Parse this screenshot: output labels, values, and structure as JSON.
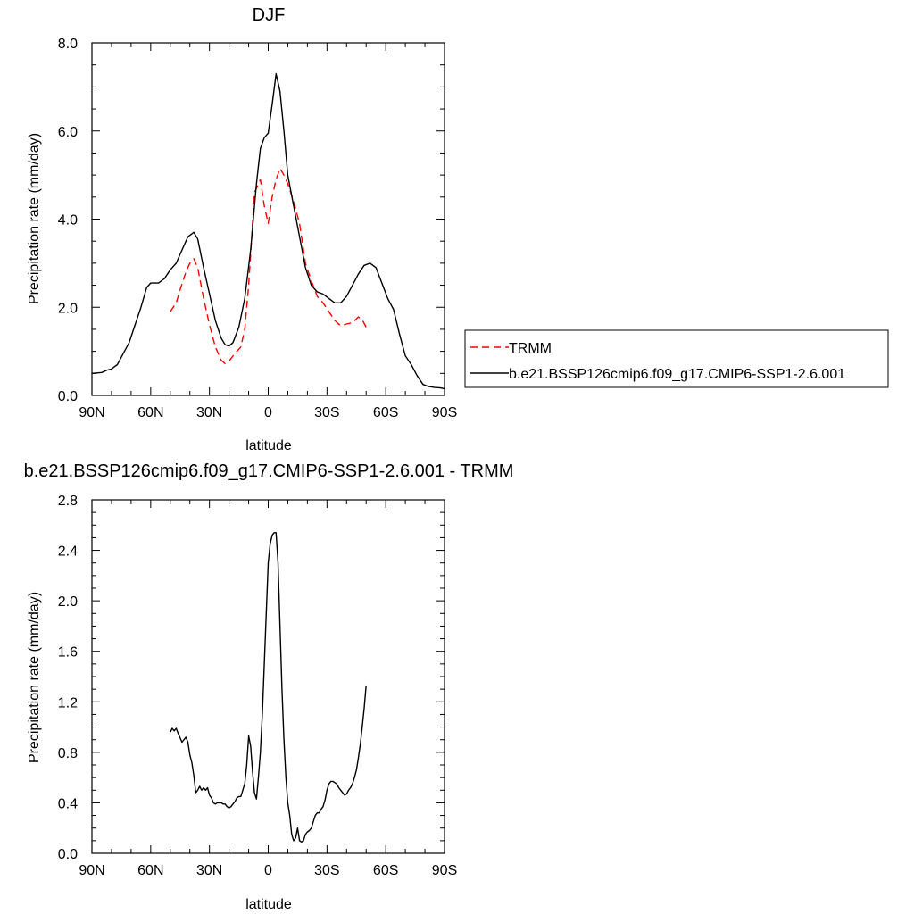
{
  "chart_data": [
    {
      "type": "line",
      "title": "DJF",
      "xlabel": "latitude",
      "ylabel": "Precipitation rate (mm/day)",
      "xlim": [
        -90,
        90
      ],
      "ylim": [
        0,
        8
      ],
      "x_ticks": [
        -90,
        -60,
        -30,
        0,
        30,
        60,
        90
      ],
      "x_tick_labels": [
        "90N",
        "60N",
        "30N",
        "0",
        "30S",
        "60S",
        "90S"
      ],
      "y_ticks": [
        0,
        2,
        4,
        6,
        8
      ],
      "y_tick_labels": [
        "0.0",
        "2.0",
        "4.0",
        "6.0",
        "8.0"
      ],
      "legend_position": "right",
      "series": [
        {
          "name": "TRMM",
          "color": "#ff0000",
          "dash": "dashed",
          "x": [
            -50,
            -47,
            -45,
            -42,
            -40,
            -38,
            -36,
            -33,
            -30,
            -27,
            -24,
            -22,
            -20,
            -17,
            -14,
            -12,
            -10,
            -7,
            -4,
            -2,
            0,
            2,
            4,
            6,
            8,
            10,
            13,
            16,
            19,
            22,
            25,
            28,
            31,
            34,
            37,
            40,
            43,
            46,
            48,
            50
          ],
          "y": [
            1.9,
            2.1,
            2.4,
            2.8,
            3.0,
            3.1,
            2.9,
            2.2,
            1.6,
            1.1,
            0.8,
            0.72,
            0.78,
            0.95,
            1.1,
            1.5,
            2.5,
            4.6,
            4.9,
            4.3,
            3.9,
            4.5,
            4.9,
            5.15,
            5.0,
            4.8,
            4.4,
            3.9,
            3.0,
            2.6,
            2.25,
            2.1,
            1.9,
            1.7,
            1.58,
            1.62,
            1.65,
            1.78,
            1.72,
            1.55
          ]
        },
        {
          "name": "b.e21.BSSP126cmip6.f09_g17.CMIP6-SSP1-2.6.001",
          "color": "#000000",
          "dash": "solid",
          "x": [
            -90,
            -85,
            -82,
            -80,
            -77,
            -74,
            -71,
            -68,
            -65,
            -62,
            -60,
            -58,
            -56,
            -53,
            -50,
            -47,
            -44,
            -41,
            -38,
            -36,
            -33,
            -30,
            -27,
            -24,
            -22,
            -20,
            -18,
            -15,
            -12,
            -9,
            -6,
            -4,
            -2,
            0,
            2,
            4,
            6,
            8,
            10,
            13,
            16,
            19,
            22,
            25,
            28,
            31,
            34,
            37,
            40,
            43,
            46,
            49,
            52,
            55,
            58,
            61,
            64,
            67,
            70,
            73,
            76,
            79,
            82,
            85,
            88,
            90
          ],
          "y": [
            0.5,
            0.52,
            0.58,
            0.6,
            0.7,
            0.95,
            1.2,
            1.6,
            2.0,
            2.45,
            2.55,
            2.55,
            2.55,
            2.65,
            2.85,
            3.0,
            3.3,
            3.6,
            3.7,
            3.55,
            2.9,
            2.3,
            1.7,
            1.3,
            1.15,
            1.12,
            1.2,
            1.55,
            2.2,
            3.3,
            4.8,
            5.6,
            5.85,
            5.95,
            6.6,
            7.3,
            6.9,
            6.0,
            5.0,
            4.3,
            3.6,
            2.9,
            2.5,
            2.35,
            2.3,
            2.2,
            2.1,
            2.1,
            2.25,
            2.5,
            2.75,
            2.95,
            3.0,
            2.9,
            2.55,
            2.2,
            1.95,
            1.4,
            0.9,
            0.7,
            0.45,
            0.25,
            0.2,
            0.18,
            0.17,
            0.15
          ]
        }
      ]
    },
    {
      "type": "line",
      "title": "b.e21.BSSP126cmip6.f09_g17.CMIP6-SSP1-2.6.001 - TRMM",
      "xlabel": "latitude",
      "ylabel": "Precipitation rate (mm/day)",
      "xlim": [
        -90,
        90
      ],
      "ylim": [
        0,
        2.8
      ],
      "x_ticks": [
        -90,
        -60,
        -30,
        0,
        30,
        60,
        90
      ],
      "x_tick_labels": [
        "90N",
        "60N",
        "30N",
        "0",
        "30S",
        "60S",
        "90S"
      ],
      "y_ticks": [
        0,
        0.4,
        0.8,
        1.2,
        1.6,
        2.0,
        2.4,
        2.8
      ],
      "y_tick_labels": [
        "0.0",
        "0.4",
        "0.8",
        "1.2",
        "1.6",
        "2.0",
        "2.4",
        "2.8"
      ],
      "series": [
        {
          "color": "#000000",
          "x": [
            -50,
            -49,
            -48,
            -47,
            -46,
            -44,
            -43,
            -42,
            -41,
            -40,
            -39,
            -38,
            -37,
            -36,
            -35,
            -34,
            -33,
            -32,
            -31,
            -30,
            -29,
            -28,
            -27,
            -26,
            -25,
            -24,
            -23,
            -22,
            -21,
            -20,
            -19,
            -18,
            -17,
            -16,
            -15,
            -14,
            -13,
            -12,
            -11,
            -10,
            -9,
            -8,
            -7,
            -6,
            -5,
            -4,
            -3,
            -2,
            -1,
            0,
            1,
            2,
            3,
            4,
            5,
            6,
            7,
            8,
            9,
            10,
            11,
            12,
            13,
            14,
            15,
            16,
            17,
            18,
            19,
            20,
            21,
            22,
            23,
            24,
            25,
            26,
            27,
            28,
            29,
            30,
            31,
            32,
            33,
            34,
            35,
            36,
            37,
            38,
            39,
            40,
            41,
            42,
            43,
            44,
            45,
            46,
            47,
            48,
            49,
            50
          ],
          "y": [
            0.96,
            0.99,
            0.97,
            0.99,
            0.95,
            0.88,
            0.9,
            0.92,
            0.88,
            0.78,
            0.72,
            0.62,
            0.48,
            0.5,
            0.53,
            0.5,
            0.52,
            0.5,
            0.52,
            0.46,
            0.44,
            0.4,
            0.39,
            0.4,
            0.4,
            0.4,
            0.39,
            0.39,
            0.37,
            0.36,
            0.37,
            0.39,
            0.41,
            0.44,
            0.45,
            0.45,
            0.5,
            0.55,
            0.7,
            0.93,
            0.85,
            0.65,
            0.48,
            0.43,
            0.6,
            0.8,
            1.1,
            1.5,
            1.9,
            2.3,
            2.45,
            2.52,
            2.54,
            2.54,
            2.3,
            1.8,
            1.3,
            0.9,
            0.6,
            0.4,
            0.3,
            0.15,
            0.1,
            0.12,
            0.2,
            0.1,
            0.09,
            0.1,
            0.15,
            0.17,
            0.18,
            0.2,
            0.25,
            0.3,
            0.32,
            0.32,
            0.35,
            0.37,
            0.42,
            0.5,
            0.55,
            0.57,
            0.57,
            0.56,
            0.55,
            0.52,
            0.5,
            0.48,
            0.46,
            0.47,
            0.5,
            0.52,
            0.55,
            0.6,
            0.66,
            0.75,
            0.86,
            1.0,
            1.15,
            1.33
          ]
        }
      ]
    }
  ]
}
